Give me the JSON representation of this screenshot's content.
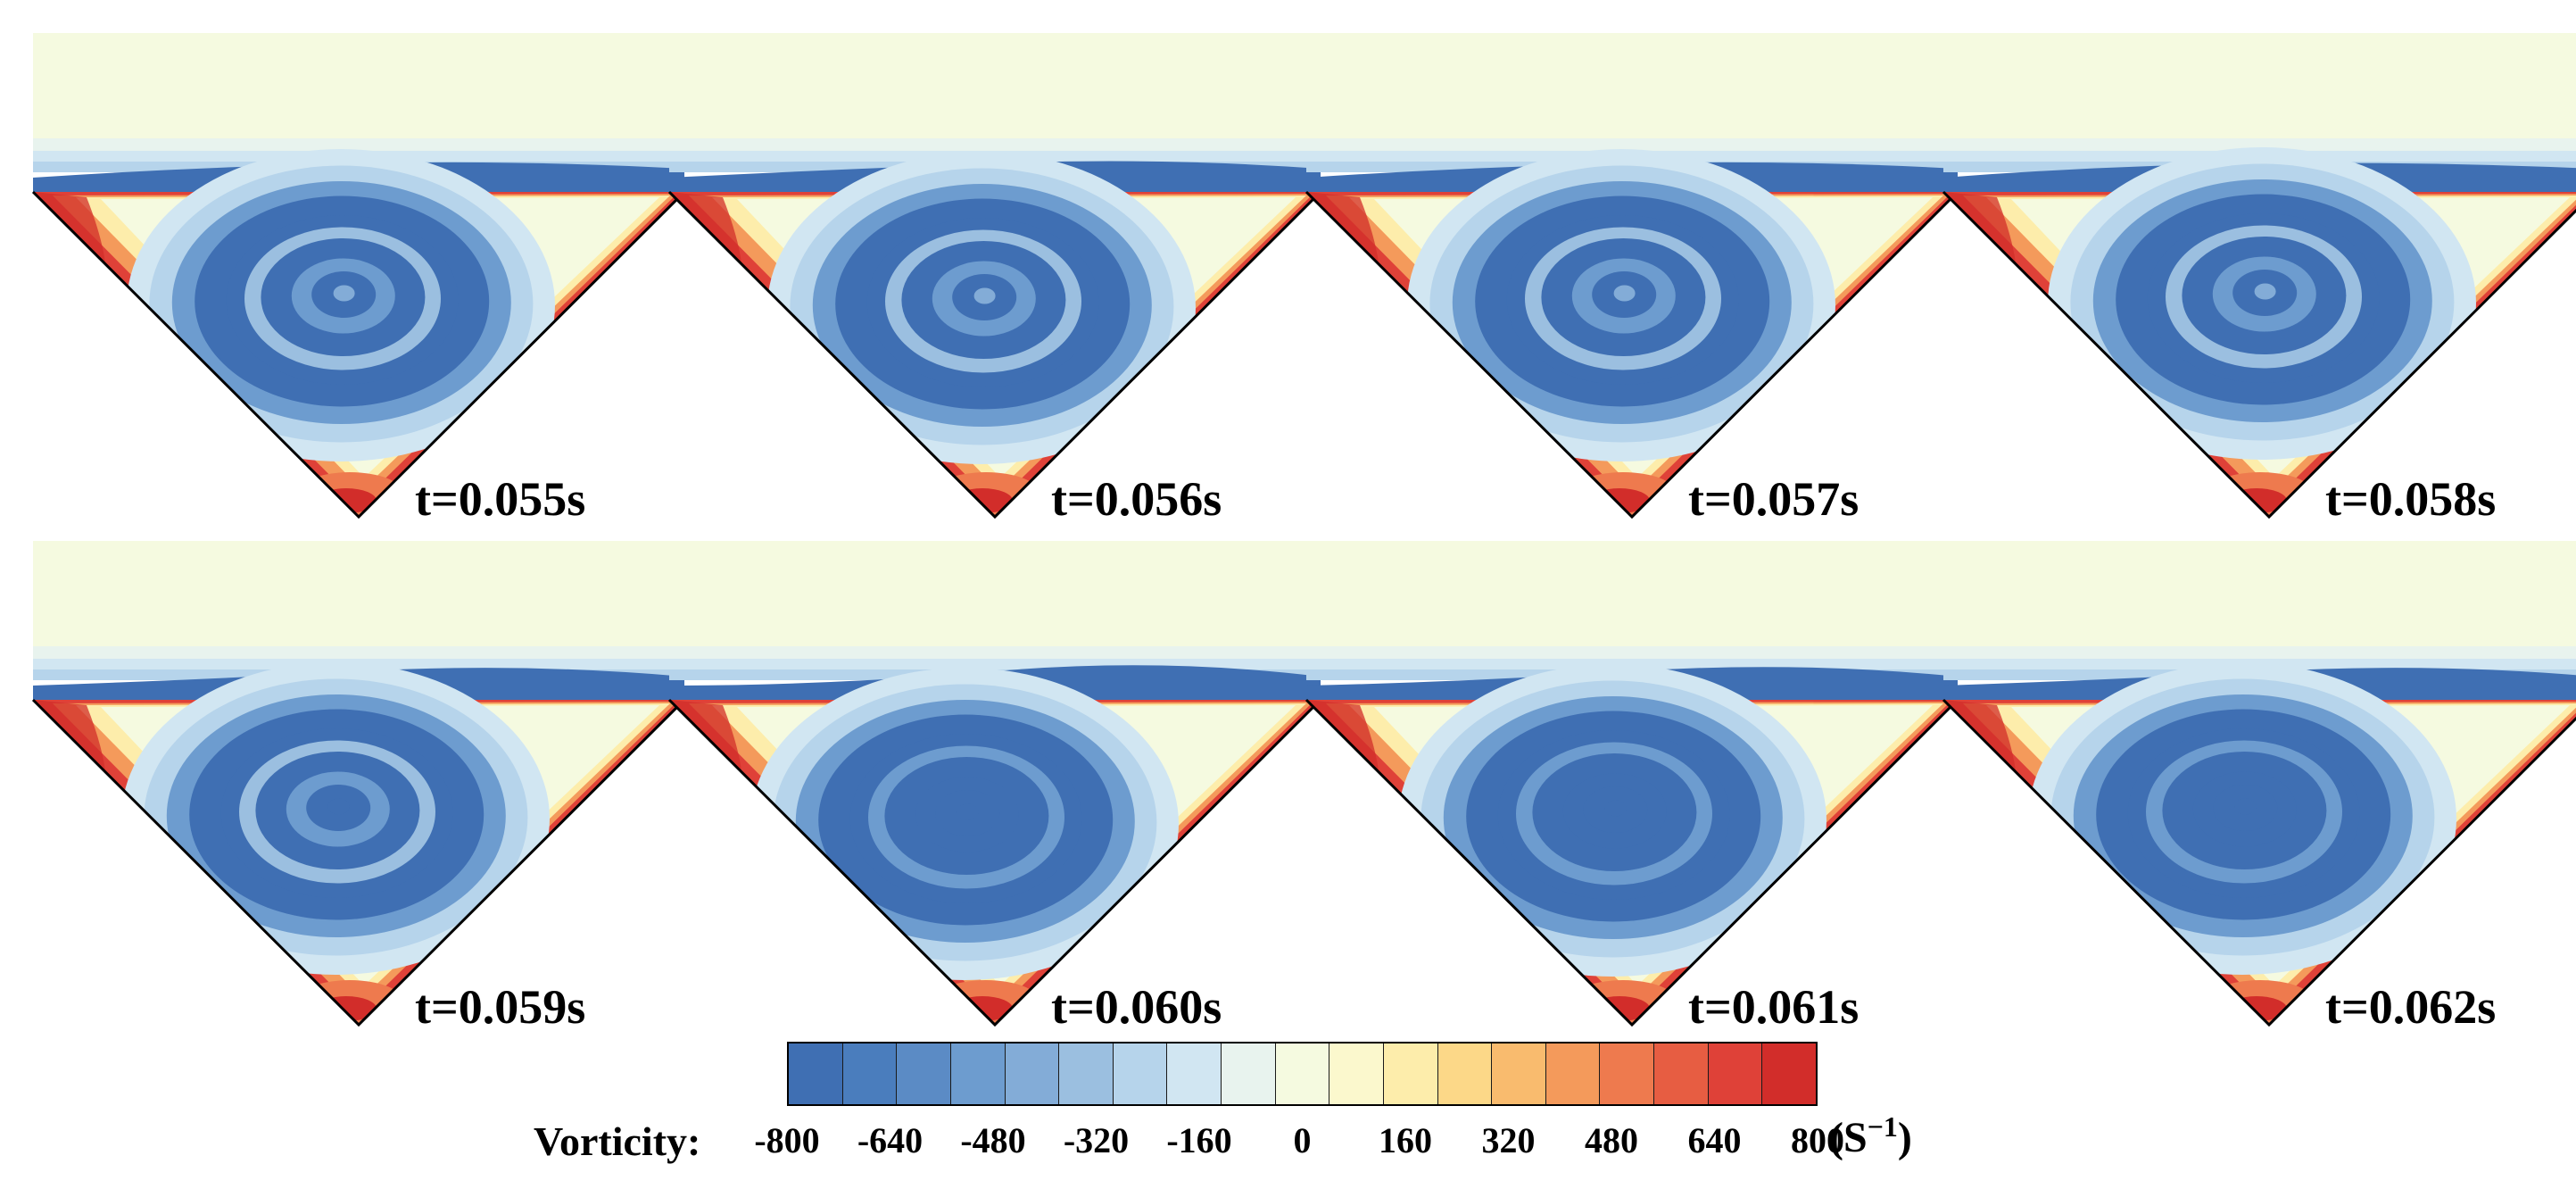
{
  "colormap": [
    "#3f6fb3",
    "#4a7dbd",
    "#5b8bc5",
    "#6d9ccf",
    "#83acd7",
    "#9bbfe0",
    "#b6d4eb",
    "#d1e6f2",
    "#e8f3ee",
    "#f5fae0",
    "#fbf8cd",
    "#fdedab",
    "#fcd888",
    "#f9bb6e",
    "#f49a5b",
    "#ee7a4e",
    "#e75d42",
    "#df4138",
    "#d22d2a"
  ],
  "panels": [
    {
      "time": "t=0.055s"
    },
    {
      "time": "t=0.056s"
    },
    {
      "time": "t=0.057s"
    },
    {
      "time": "t=0.058s"
    },
    {
      "time": "t=0.059s"
    },
    {
      "time": "t=0.060s"
    },
    {
      "time": "t=0.061s"
    },
    {
      "time": "t=0.062s"
    }
  ],
  "legend": {
    "label": "Vorticity:",
    "ticks": [
      "-800",
      "-640",
      "-480",
      "-320",
      "-160",
      "0",
      "160",
      "320",
      "480",
      "640",
      "800"
    ],
    "unit_base": "(S",
    "unit_exp": "−1",
    "unit_close": ")"
  }
}
